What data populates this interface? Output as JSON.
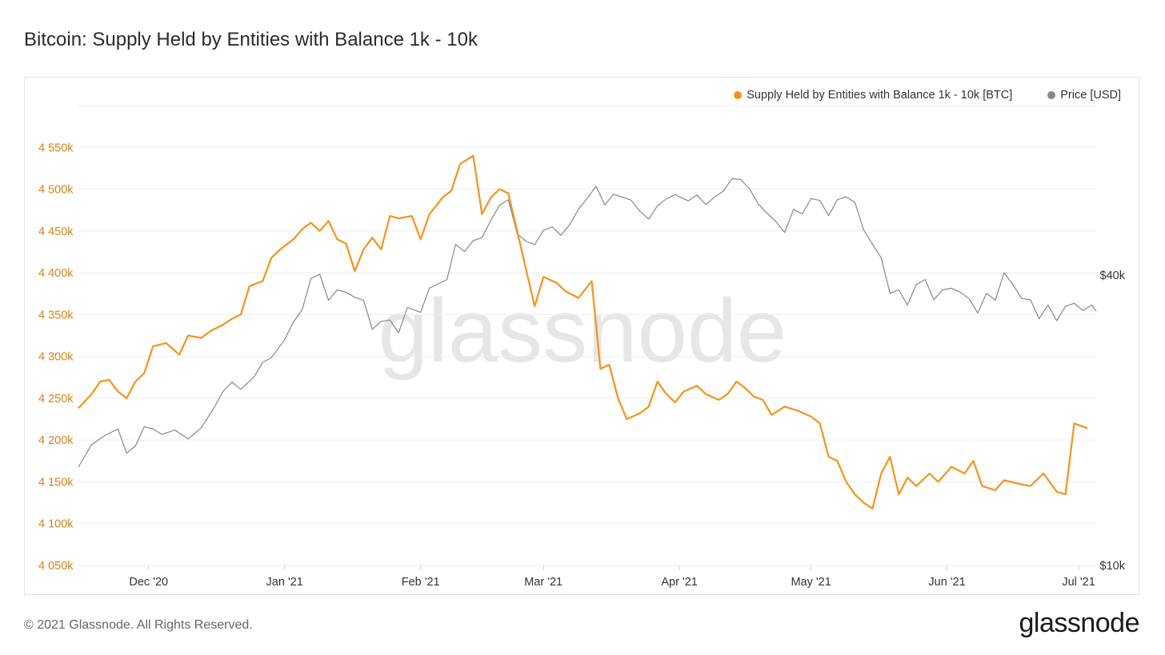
{
  "page": {
    "title": "Bitcoin: Supply Held by Entities with Balance 1k - 10k",
    "copyright": "© 2021 Glassnode. All Rights Reserved.",
    "logo_text": "glassnode",
    "watermark_text": "glassnode"
  },
  "colors": {
    "supply": "#f7931a",
    "price": "#888888",
    "grid": "#eeeeee",
    "supply_axis_text": "#d9821b",
    "price_axis_text": "#333333"
  },
  "chart_data": {
    "type": "line",
    "title": "Bitcoin: Supply Held by Entities with Balance 1k - 10k",
    "x_ticks": [
      "Dec '20",
      "Jan '21",
      "Feb '21",
      "Mar '21",
      "Apr '21",
      "May '21",
      "Jun '21",
      "Jul '21"
    ],
    "x_range": [
      "Nov 15 '20",
      "Jul 05 '21"
    ],
    "y_left": {
      "label": "Supply Held by Entities with Balance 1k - 10k [BTC]",
      "ticks": [
        "4 050k",
        "4 100k",
        "4 150k",
        "4 200k",
        "4 250k",
        "4 300k",
        "4 350k",
        "4 400k",
        "4 450k",
        "4 500k",
        "4 550k"
      ],
      "range": [
        4050,
        4600
      ]
    },
    "y_right": {
      "label": "Price [USD]",
      "scale": "log",
      "ticks": [
        "$10k",
        "$40k"
      ],
      "range": [
        10000,
        90000
      ]
    },
    "legend": [
      {
        "name": "Supply Held by Entities with Balance 1k - 10k [BTC]",
        "color": "#f7931a"
      },
      {
        "name": "Price [USD]",
        "color": "#888888"
      }
    ],
    "series": [
      {
        "name": "Supply Held by Entities with Balance 1k - 10k [BTC]",
        "unit": "thousand BTC",
        "points": [
          [
            "2020-11-15",
            4238
          ],
          [
            "2020-11-18",
            4255
          ],
          [
            "2020-11-20",
            4270
          ],
          [
            "2020-11-22",
            4272
          ],
          [
            "2020-11-24",
            4258
          ],
          [
            "2020-11-26",
            4250
          ],
          [
            "2020-11-28",
            4270
          ],
          [
            "2020-11-30",
            4280
          ],
          [
            "2020-12-02",
            4312
          ],
          [
            "2020-12-05",
            4316
          ],
          [
            "2020-12-08",
            4302
          ],
          [
            "2020-12-10",
            4325
          ],
          [
            "2020-12-13",
            4322
          ],
          [
            "2020-12-15",
            4330
          ],
          [
            "2020-12-18",
            4338
          ],
          [
            "2020-12-20",
            4345
          ],
          [
            "2020-12-22",
            4350
          ],
          [
            "2020-12-24",
            4384
          ],
          [
            "2020-12-27",
            4390
          ],
          [
            "2020-12-29",
            4418
          ],
          [
            "2020-12-31",
            4428
          ],
          [
            "2021-01-03",
            4440
          ],
          [
            "2021-01-05",
            4452
          ],
          [
            "2021-01-07",
            4460
          ],
          [
            "2021-01-09",
            4450
          ],
          [
            "2021-01-11",
            4462
          ],
          [
            "2021-01-13",
            4440
          ],
          [
            "2021-01-15",
            4435
          ],
          [
            "2021-01-17",
            4402
          ],
          [
            "2021-01-19",
            4428
          ],
          [
            "2021-01-21",
            4442
          ],
          [
            "2021-01-23",
            4428
          ],
          [
            "2021-01-25",
            4468
          ],
          [
            "2021-01-27",
            4465
          ],
          [
            "2021-01-30",
            4468
          ],
          [
            "2021-02-01",
            4440
          ],
          [
            "2021-02-03",
            4470
          ],
          [
            "2021-02-06",
            4490
          ],
          [
            "2021-02-08",
            4498
          ],
          [
            "2021-02-10",
            4530
          ],
          [
            "2021-02-13",
            4540
          ],
          [
            "2021-02-15",
            4470
          ],
          [
            "2021-02-17",
            4490
          ],
          [
            "2021-02-19",
            4500
          ],
          [
            "2021-02-21",
            4495
          ],
          [
            "2021-02-23",
            4450
          ],
          [
            "2021-02-25",
            4405
          ],
          [
            "2021-02-27",
            4360
          ],
          [
            "2021-03-01",
            4395
          ],
          [
            "2021-03-04",
            4388
          ],
          [
            "2021-03-06",
            4378
          ],
          [
            "2021-03-09",
            4370
          ],
          [
            "2021-03-12",
            4390
          ],
          [
            "2021-03-14",
            4285
          ],
          [
            "2021-03-16",
            4290
          ],
          [
            "2021-03-18",
            4250
          ],
          [
            "2021-03-20",
            4225
          ],
          [
            "2021-03-23",
            4232
          ],
          [
            "2021-03-25",
            4240
          ],
          [
            "2021-03-27",
            4270
          ],
          [
            "2021-03-29",
            4255
          ],
          [
            "2021-03-31",
            4245
          ],
          [
            "2021-04-02",
            4258
          ],
          [
            "2021-04-05",
            4265
          ],
          [
            "2021-04-07",
            4255
          ],
          [
            "2021-04-10",
            4248
          ],
          [
            "2021-04-12",
            4255
          ],
          [
            "2021-04-14",
            4270
          ],
          [
            "2021-04-16",
            4262
          ],
          [
            "2021-04-18",
            4252
          ],
          [
            "2021-04-20",
            4248
          ],
          [
            "2021-04-22",
            4230
          ],
          [
            "2021-04-25",
            4240
          ],
          [
            "2021-04-28",
            4235
          ],
          [
            "2021-05-01",
            4228
          ],
          [
            "2021-05-03",
            4220
          ],
          [
            "2021-05-05",
            4180
          ],
          [
            "2021-05-07",
            4175
          ],
          [
            "2021-05-09",
            4150
          ],
          [
            "2021-05-11",
            4135
          ],
          [
            "2021-05-13",
            4125
          ],
          [
            "2021-05-15",
            4118
          ],
          [
            "2021-05-17",
            4160
          ],
          [
            "2021-05-19",
            4180
          ],
          [
            "2021-05-21",
            4135
          ],
          [
            "2021-05-23",
            4155
          ],
          [
            "2021-05-25",
            4145
          ],
          [
            "2021-05-28",
            4160
          ],
          [
            "2021-05-30",
            4150
          ],
          [
            "2021-06-02",
            4168
          ],
          [
            "2021-06-05",
            4160
          ],
          [
            "2021-06-07",
            4175
          ],
          [
            "2021-06-09",
            4145
          ],
          [
            "2021-06-12",
            4140
          ],
          [
            "2021-06-14",
            4152
          ],
          [
            "2021-06-17",
            4148
          ],
          [
            "2021-06-20",
            4145
          ],
          [
            "2021-06-23",
            4160
          ],
          [
            "2021-06-26",
            4138
          ],
          [
            "2021-06-28",
            4135
          ],
          [
            "2021-06-30",
            4220
          ],
          [
            "2021-07-03",
            4214
          ]
        ]
      },
      {
        "name": "Price [USD]",
        "unit": "USD",
        "points": [
          [
            "2020-11-15",
            16000
          ],
          [
            "2020-11-18",
            17800
          ],
          [
            "2020-11-21",
            18600
          ],
          [
            "2020-11-24",
            19200
          ],
          [
            "2020-11-26",
            17100
          ],
          [
            "2020-11-28",
            17700
          ],
          [
            "2020-11-30",
            19400
          ],
          [
            "2020-12-02",
            19200
          ],
          [
            "2020-12-04",
            18700
          ],
          [
            "2020-12-07",
            19100
          ],
          [
            "2020-12-10",
            18300
          ],
          [
            "2020-12-13",
            19300
          ],
          [
            "2020-12-16",
            21300
          ],
          [
            "2020-12-18",
            23000
          ],
          [
            "2020-12-20",
            24000
          ],
          [
            "2020-12-22",
            23200
          ],
          [
            "2020-12-25",
            24600
          ],
          [
            "2020-12-27",
            26400
          ],
          [
            "2020-12-29",
            27000
          ],
          [
            "2021-01-01",
            29400
          ],
          [
            "2021-01-03",
            32000
          ],
          [
            "2021-01-05",
            33900
          ],
          [
            "2021-01-07",
            39400
          ],
          [
            "2021-01-09",
            40200
          ],
          [
            "2021-01-11",
            35500
          ],
          [
            "2021-01-13",
            37300
          ],
          [
            "2021-01-15",
            36900
          ],
          [
            "2021-01-17",
            36000
          ],
          [
            "2021-01-19",
            35500
          ],
          [
            "2021-01-21",
            30900
          ],
          [
            "2021-01-23",
            32100
          ],
          [
            "2021-01-25",
            32300
          ],
          [
            "2021-01-27",
            30400
          ],
          [
            "2021-01-29",
            34300
          ],
          [
            "2021-02-01",
            33500
          ],
          [
            "2021-02-03",
            37600
          ],
          [
            "2021-02-05",
            38400
          ],
          [
            "2021-02-07",
            39200
          ],
          [
            "2021-02-09",
            46400
          ],
          [
            "2021-02-11",
            44800
          ],
          [
            "2021-02-13",
            47200
          ],
          [
            "2021-02-15",
            47900
          ],
          [
            "2021-02-17",
            52000
          ],
          [
            "2021-02-19",
            55900
          ],
          [
            "2021-02-21",
            57400
          ],
          [
            "2021-02-23",
            48800
          ],
          [
            "2021-02-25",
            47100
          ],
          [
            "2021-02-27",
            46300
          ],
          [
            "2021-03-01",
            49600
          ],
          [
            "2021-03-03",
            50400
          ],
          [
            "2021-03-05",
            48400
          ],
          [
            "2021-03-07",
            51000
          ],
          [
            "2021-03-09",
            54900
          ],
          [
            "2021-03-11",
            57800
          ],
          [
            "2021-03-13",
            61200
          ],
          [
            "2021-03-15",
            56000
          ],
          [
            "2021-03-17",
            58900
          ],
          [
            "2021-03-19",
            58100
          ],
          [
            "2021-03-21",
            57300
          ],
          [
            "2021-03-23",
            54300
          ],
          [
            "2021-03-25",
            52300
          ],
          [
            "2021-03-27",
            55800
          ],
          [
            "2021-03-29",
            57600
          ],
          [
            "2021-03-31",
            58800
          ],
          [
            "2021-04-03",
            57100
          ],
          [
            "2021-04-05",
            58700
          ],
          [
            "2021-04-07",
            56100
          ],
          [
            "2021-04-09",
            58100
          ],
          [
            "2021-04-11",
            59800
          ],
          [
            "2021-04-13",
            63500
          ],
          [
            "2021-04-15",
            63200
          ],
          [
            "2021-04-17",
            60400
          ],
          [
            "2021-04-19",
            56200
          ],
          [
            "2021-04-21",
            53800
          ],
          [
            "2021-04-23",
            51700
          ],
          [
            "2021-04-25",
            49100
          ],
          [
            "2021-04-27",
            54800
          ],
          [
            "2021-04-29",
            53600
          ],
          [
            "2021-05-01",
            57700
          ],
          [
            "2021-05-03",
            57200
          ],
          [
            "2021-05-05",
            53200
          ],
          [
            "2021-05-07",
            57400
          ],
          [
            "2021-05-09",
            58200
          ],
          [
            "2021-05-11",
            56700
          ],
          [
            "2021-05-13",
            49700
          ],
          [
            "2021-05-15",
            46400
          ],
          [
            "2021-05-17",
            43500
          ],
          [
            "2021-05-19",
            36700
          ],
          [
            "2021-05-21",
            37300
          ],
          [
            "2021-05-23",
            34700
          ],
          [
            "2021-05-25",
            38300
          ],
          [
            "2021-05-27",
            39200
          ],
          [
            "2021-05-29",
            35600
          ],
          [
            "2021-05-31",
            37300
          ],
          [
            "2021-06-02",
            37600
          ],
          [
            "2021-06-04",
            36900
          ],
          [
            "2021-06-06",
            35800
          ],
          [
            "2021-06-08",
            33400
          ],
          [
            "2021-06-10",
            36700
          ],
          [
            "2021-06-12",
            35500
          ],
          [
            "2021-06-14",
            40500
          ],
          [
            "2021-06-16",
            38300
          ],
          [
            "2021-06-18",
            35800
          ],
          [
            "2021-06-20",
            35600
          ],
          [
            "2021-06-22",
            32500
          ],
          [
            "2021-06-24",
            34700
          ],
          [
            "2021-06-26",
            32200
          ],
          [
            "2021-06-28",
            34500
          ],
          [
            "2021-06-30",
            35000
          ],
          [
            "2021-07-02",
            33800
          ],
          [
            "2021-07-04",
            34700
          ],
          [
            "2021-07-05",
            33700
          ]
        ]
      }
    ]
  }
}
